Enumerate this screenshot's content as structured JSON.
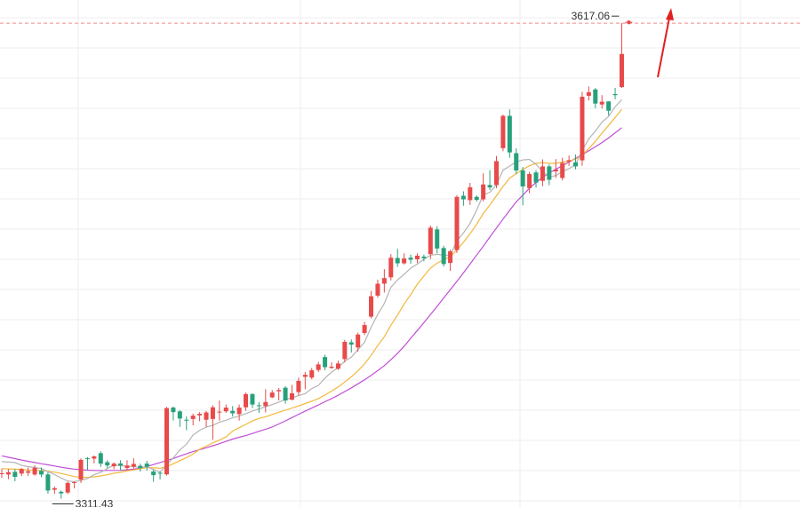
{
  "colors": {
    "up": "#e84a4a",
    "down": "#26a17b",
    "ma5": "#b5b5b5",
    "ma10": "#f3b83c",
    "ma20": "#c04fd6",
    "high_line": "#f08a8a",
    "arrow": "#e02020",
    "grid": "#eeeeee"
  },
  "chart_data": {
    "type": "candlestick",
    "ylim": [
      3306,
      3632
    ],
    "grid": true,
    "annotations": {
      "high_label": "3617.06",
      "low_label": "3311.43"
    },
    "high_value": 3617.06,
    "low_value": 3311.43,
    "candles": [
      [
        3327.6,
        3327.7,
        3330.6,
        3324.8
      ],
      [
        3326.9,
        3328.4,
        3330.4,
        3323.9
      ],
      [
        3328.6,
        3325.4,
        3330.4,
        3322.6
      ],
      [
        3327.5,
        3330.4,
        3331.0,
        3325.9
      ],
      [
        3328.0,
        3329.0,
        3331.4,
        3326.0
      ],
      [
        3326.9,
        3331.2,
        3332.8,
        3326.1
      ],
      [
        3329.3,
        3326.9,
        3331.4,
        3325.2
      ],
      [
        3326.9,
        3316.6,
        3328.4,
        3314.5
      ],
      [
        3317.1,
        3318.1,
        3319.2,
        3314.5
      ],
      [
        3315.8,
        3314.8,
        3316.6,
        3311.4
      ],
      [
        3315.3,
        3321.5,
        3322.4,
        3314.3
      ],
      [
        3321.8,
        3322.0,
        3322.6,
        3317.9
      ],
      [
        3323.6,
        3336.3,
        3337.3,
        3321.5
      ],
      [
        3337.3,
        3336.9,
        3338.1,
        3329.6
      ],
      [
        3337.1,
        3338.5,
        3339.1,
        3334.0
      ],
      [
        3340.6,
        3333.9,
        3341.8,
        3331.8
      ],
      [
        3334.8,
        3332.7,
        3336.1,
        3330.9
      ],
      [
        3332.2,
        3333.9,
        3334.6,
        3330.4
      ],
      [
        3334.0,
        3332.7,
        3336.1,
        3329.4
      ],
      [
        3331.1,
        3332.7,
        3336.1,
        3329.4
      ],
      [
        3331.9,
        3333.7,
        3337.3,
        3330.7
      ],
      [
        3332.5,
        3331.1,
        3333.9,
        3328.8
      ],
      [
        3333.9,
        3331.9,
        3335.7,
        3329.4
      ],
      [
        3328.8,
        3326.5,
        3330.1,
        3322.2
      ],
      [
        3328.0,
        3327.7,
        3328.8,
        3323.7
      ],
      [
        3327.0,
        3369.6,
        3370.4,
        3326.2
      ],
      [
        3369.9,
        3367.0,
        3370.6,
        3361.6
      ],
      [
        3367.5,
        3362.9,
        3368.3,
        3357.5
      ],
      [
        3362.1,
        3361.6,
        3364.2,
        3355.4
      ],
      [
        3362.6,
        3364.7,
        3366.0,
        3358.5
      ],
      [
        3364.9,
        3365.9,
        3367.0,
        3361.1
      ],
      [
        3362.1,
        3366.8,
        3367.8,
        3357.5
      ],
      [
        3362.6,
        3370.1,
        3371.4,
        3349.3
      ],
      [
        3366.8,
        3367.3,
        3374.5,
        3361.6
      ],
      [
        3367.5,
        3369.9,
        3371.9,
        3366.5
      ],
      [
        3367.8,
        3366.2,
        3370.9,
        3364.2
      ],
      [
        3365.7,
        3369.9,
        3371.9,
        3361.6
      ],
      [
        3370.1,
        3378.6,
        3379.6,
        3367.8
      ],
      [
        3378.6,
        3371.9,
        3379.1,
        3369.6
      ],
      [
        3371.4,
        3371.1,
        3373.5,
        3366.5
      ],
      [
        3370.9,
        3373.5,
        3381.7,
        3366.8
      ],
      [
        3376.5,
        3379.6,
        3381.2,
        3376.0
      ],
      [
        3380.4,
        3381.2,
        3382.5,
        3374.5
      ],
      [
        3382.7,
        3374.5,
        3383.7,
        3372.4
      ],
      [
        3375.0,
        3379.1,
        3384.5,
        3374.5
      ],
      [
        3379.9,
        3387.1,
        3389.2,
        3377.6
      ],
      [
        3389.7,
        3391.0,
        3392.8,
        3381.7
      ],
      [
        3389.2,
        3393.9,
        3395.4,
        3388.1
      ],
      [
        3394.1,
        3397.7,
        3399.3,
        3392.8
      ],
      [
        3402.4,
        3395.9,
        3403.9,
        3393.9
      ],
      [
        3395.4,
        3396.2,
        3399.0,
        3394.9
      ],
      [
        3394.9,
        3398.3,
        3400.1,
        3394.1
      ],
      [
        3401.1,
        3412.2,
        3413.5,
        3399.0
      ],
      [
        3411.9,
        3410.4,
        3413.7,
        3405.3
      ],
      [
        3408.6,
        3416.9,
        3418.1,
        3405.8
      ],
      [
        3417.9,
        3423.0,
        3425.1,
        3416.6
      ],
      [
        3428.4,
        3441.5,
        3444.9,
        3427.2
      ],
      [
        3441.9,
        3449.6,
        3452.2,
        3440.6
      ],
      [
        3449.6,
        3453.2,
        3458.9,
        3443.9
      ],
      [
        3453.7,
        3466.3,
        3468.6,
        3451.7
      ],
      [
        3466.1,
        3462.7,
        3472.0,
        3460.4
      ],
      [
        3462.7,
        3465.8,
        3469.1,
        3461.9
      ],
      [
        3466.3,
        3465.0,
        3468.3,
        3462.4
      ],
      [
        3465.3,
        3467.6,
        3469.1,
        3462.9
      ],
      [
        3467.0,
        3466.0,
        3468.3,
        3464.0
      ],
      [
        3468.6,
        3485.6,
        3487.0,
        3465.5
      ],
      [
        3484.5,
        3472.2,
        3486.5,
        3469.1
      ],
      [
        3472.5,
        3462.2,
        3474.0,
        3460.6
      ],
      [
        3462.9,
        3470.4,
        3471.5,
        3457.8
      ],
      [
        3471.2,
        3505.4,
        3506.4,
        3469.4
      ],
      [
        3506.1,
        3503.8,
        3509.0,
        3499.7
      ],
      [
        3503.3,
        3511.6,
        3514.4,
        3500.2
      ],
      [
        3505.4,
        3503.5,
        3506.4,
        3502.4
      ],
      [
        3503.8,
        3513.4,
        3520.6,
        3502.5
      ],
      [
        3513.0,
        3511.5,
        3522.6,
        3509.8
      ],
      [
        3513.0,
        3528.4,
        3531.7,
        3511.0
      ],
      [
        3536.7,
        3557.5,
        3558.3,
        3534.8
      ],
      [
        3557.5,
        3534.0,
        3561.6,
        3530.6
      ],
      [
        3533.5,
        3522.4,
        3536.6,
        3520.1
      ],
      [
        3522.4,
        3512.1,
        3524.6,
        3499.9
      ],
      [
        3511.0,
        3520.1,
        3521.5,
        3507.7
      ],
      [
        3521.1,
        3514.6,
        3522.6,
        3511.4
      ],
      [
        3515.7,
        3525.0,
        3529.5,
        3512.3
      ],
      [
        3525.0,
        3516.4,
        3526.4,
        3512.9
      ],
      [
        3521.8,
        3523.0,
        3529.7,
        3517.6
      ],
      [
        3517.6,
        3527.2,
        3530.6,
        3516.0
      ],
      [
        3528.0,
        3529.0,
        3532.0,
        3525.3
      ],
      [
        3527.6,
        3525.0,
        3532.6,
        3523.1
      ],
      [
        3528.9,
        3569.8,
        3573.0,
        3525.4
      ],
      [
        3570.4,
        3572.7,
        3576.4,
        3567.4
      ],
      [
        3574.5,
        3565.4,
        3575.4,
        3562.4
      ],
      [
        3564.8,
        3566.6,
        3570.8,
        3562.2
      ],
      [
        3566.8,
        3560.8,
        3566.8,
        3557.7
      ],
      [
        3571.5,
        3570.8,
        3575.5,
        3568.2
      ],
      [
        3576.0,
        3597.3,
        3617.1,
        3575.5
      ]
    ],
    "ma5": [
      3335.2,
      3334.9,
      3334.6,
      3332.8,
      3332.0,
      3331.4,
      3330.7,
      3328.8,
      3326.9,
      3324.6,
      3322.7,
      3322.4,
      3323.0,
      3324.4,
      3326.8,
      3328.3,
      3330.7,
      3332.9,
      3332.6,
      3332.2,
      3332.1,
      3331.3,
      3331.9,
      3330.1,
      3328.5,
      3333.0,
      3337.6,
      3342.7,
      3346.3,
      3352.3,
      3355.3,
      3357.3,
      3358.5,
      3360.6,
      3361.8,
      3363.3,
      3364.6,
      3366.0,
      3367.7,
      3369.1,
      3370.5,
      3371.8,
      3373.4,
      3375.0,
      3376.2,
      3377.6,
      3378.9,
      3382.1,
      3384.2,
      3388.9,
      3392.8,
      3395.6,
      3399.7,
      3402.4,
      3407.2,
      3411.9,
      3421.6,
      3429.8,
      3436.9,
      3447.3,
      3452.0,
      3455.6,
      3459.6,
      3462.2,
      3465.3,
      3467.9,
      3468.5,
      3468.0,
      3467.8,
      3477.2,
      3482.2,
      3488.3,
      3496.9,
      3506.7,
      3508.4,
      3513.2,
      3522.6,
      3525.2,
      3527.9,
      3529.2,
      3529.5,
      3526.3,
      3521.7,
      3518.2,
      3519.1,
      3521.7,
      3523.5,
      3526.2,
      3535.2,
      3542.8,
      3547.7,
      3553.5,
      3557.1,
      3563.4,
      3567.9
    ],
    "ma10": [
      3330.7,
      3330.5,
      3330.3,
      3330.2,
      3329.8,
      3329.5,
      3329.4,
      3329.0,
      3328.4,
      3327.6,
      3326.6,
      3325.6,
      3325.1,
      3325.0,
      3325.4,
      3326.0,
      3326.7,
      3327.7,
      3328.3,
      3329.2,
      3329.8,
      3330.6,
      3331.4,
      3331.2,
      3330.9,
      3332.0,
      3333.8,
      3335.8,
      3337.8,
      3340.0,
      3343.1,
      3345.1,
      3347.2,
      3349.0,
      3351.1,
      3354.8,
      3357.0,
      3359.1,
      3361.3,
      3363.0,
      3364.0,
      3365.5,
      3366.9,
      3368.3,
      3369.6,
      3371.0,
      3372.5,
      3374.0,
      3375.7,
      3378.0,
      3380.5,
      3383.2,
      3386.4,
      3389.7,
      3393.6,
      3398.0,
      3403.5,
      3409.8,
      3415.5,
      3422.9,
      3429.4,
      3436.5,
      3442.5,
      3449.3,
      3454.5,
      3459.6,
      3462.8,
      3465.0,
      3467.0,
      3471.2,
      3476.2,
      3481.7,
      3487.8,
      3494.7,
      3500.2,
      3506.1,
      3512.1,
      3517.4,
      3520.4,
      3523.0,
      3525.4,
      3527.0,
      3527.4,
      3527.0,
      3527.0,
      3527.8,
      3528.3,
      3529.7,
      3532.3,
      3536.4,
      3541.1,
      3546.4,
      3551.3,
      3556.5,
      3561.7
    ],
    "ma20": [
      3338.9,
      3338.0,
      3337.1,
      3336.2,
      3335.4,
      3334.6,
      3333.8,
      3333.1,
      3332.4,
      3331.6,
      3330.9,
      3330.4,
      3330.0,
      3329.7,
      3329.5,
      3329.4,
      3329.5,
      3329.5,
      3329.6,
      3329.9,
      3330.4,
      3331.0,
      3332.1,
      3333.3,
      3334.6,
      3335.9,
      3337.2,
      3338.7,
      3340.2,
      3341.6,
      3342.9,
      3344.1,
      3345.4,
      3346.7,
      3348.2,
      3349.7,
      3350.8,
      3351.9,
      3353.3,
      3354.7,
      3356.0,
      3357.4,
      3359.4,
      3361.4,
      3363.5,
      3365.6,
      3367.6,
      3369.6,
      3371.6,
      3373.7,
      3375.7,
      3377.8,
      3380.2,
      3382.6,
      3385.2,
      3387.8,
      3390.6,
      3393.7,
      3396.9,
      3400.7,
      3404.8,
      3409.3,
      3414.5,
      3419.5,
      3424.5,
      3429.7,
      3435.0,
      3440.4,
      3445.7,
      3451.1,
      3456.6,
      3462.2,
      3468.0,
      3473.7,
      3479.6,
      3485.4,
      3491.1,
      3496.7,
      3502.2,
      3506.5,
      3510.9,
      3514.7,
      3517.9,
      3520.7,
      3523.1,
      3525.5,
      3527.8,
      3530.2,
      3532.6,
      3535.0,
      3537.6,
      3540.3,
      3543.3,
      3546.6,
      3549.9
    ]
  }
}
